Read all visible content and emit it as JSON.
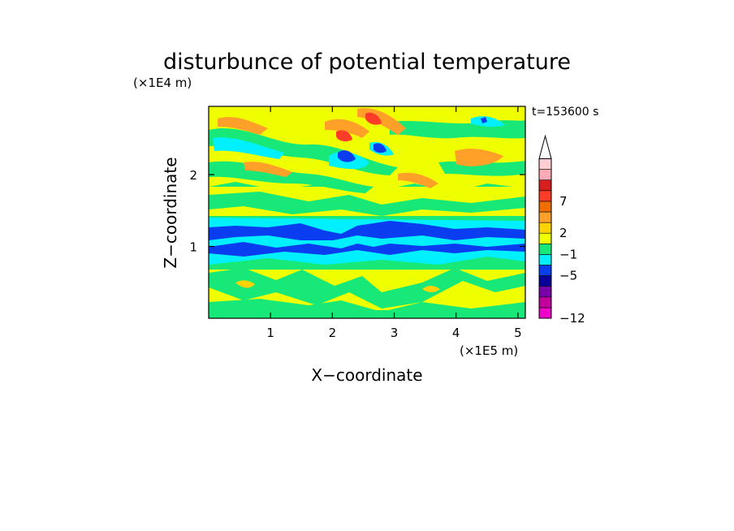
{
  "chart_data": {
    "type": "heatmap",
    "title": "disturbunce of potential temperature",
    "time_label": "t=153600 s",
    "xlabel": "X−coordinate",
    "ylabel": "Z−coordinate",
    "x_scale_label": "(×1E5 m)",
    "y_scale_label": "(×1E4 m)",
    "xlim": [
      0,
      5.12
    ],
    "ylim": [
      0,
      2.95
    ],
    "x_ticks": [
      {
        "value": 1,
        "label": "1"
      },
      {
        "value": 2,
        "label": "2"
      },
      {
        "value": 3,
        "label": "3"
      },
      {
        "value": 4,
        "label": "4"
      },
      {
        "value": 5,
        "label": "5"
      }
    ],
    "y_ticks": [
      {
        "value": 1,
        "label": "1"
      },
      {
        "value": 2,
        "label": "2"
      }
    ],
    "colorbar": {
      "colors": [
        "#ee00c8",
        "#c4009c",
        "#7a00a8",
        "#0a009a",
        "#0a3cf0",
        "#00f0ff",
        "#18e878",
        "#f0ff00",
        "#ffd200",
        "#ffa028",
        "#f06e00",
        "#ff3c28",
        "#d71e1e",
        "#ffaab4",
        "#ffcdd2"
      ],
      "labels": [
        {
          "label": "−12",
          "index": 0
        },
        {
          "label": "−5",
          "index": 4
        },
        {
          "label": "−1",
          "index": 6
        },
        {
          "label": "2",
          "index": 8
        },
        {
          "label": "7",
          "index": 11
        }
      ],
      "extend": "max"
    }
  }
}
